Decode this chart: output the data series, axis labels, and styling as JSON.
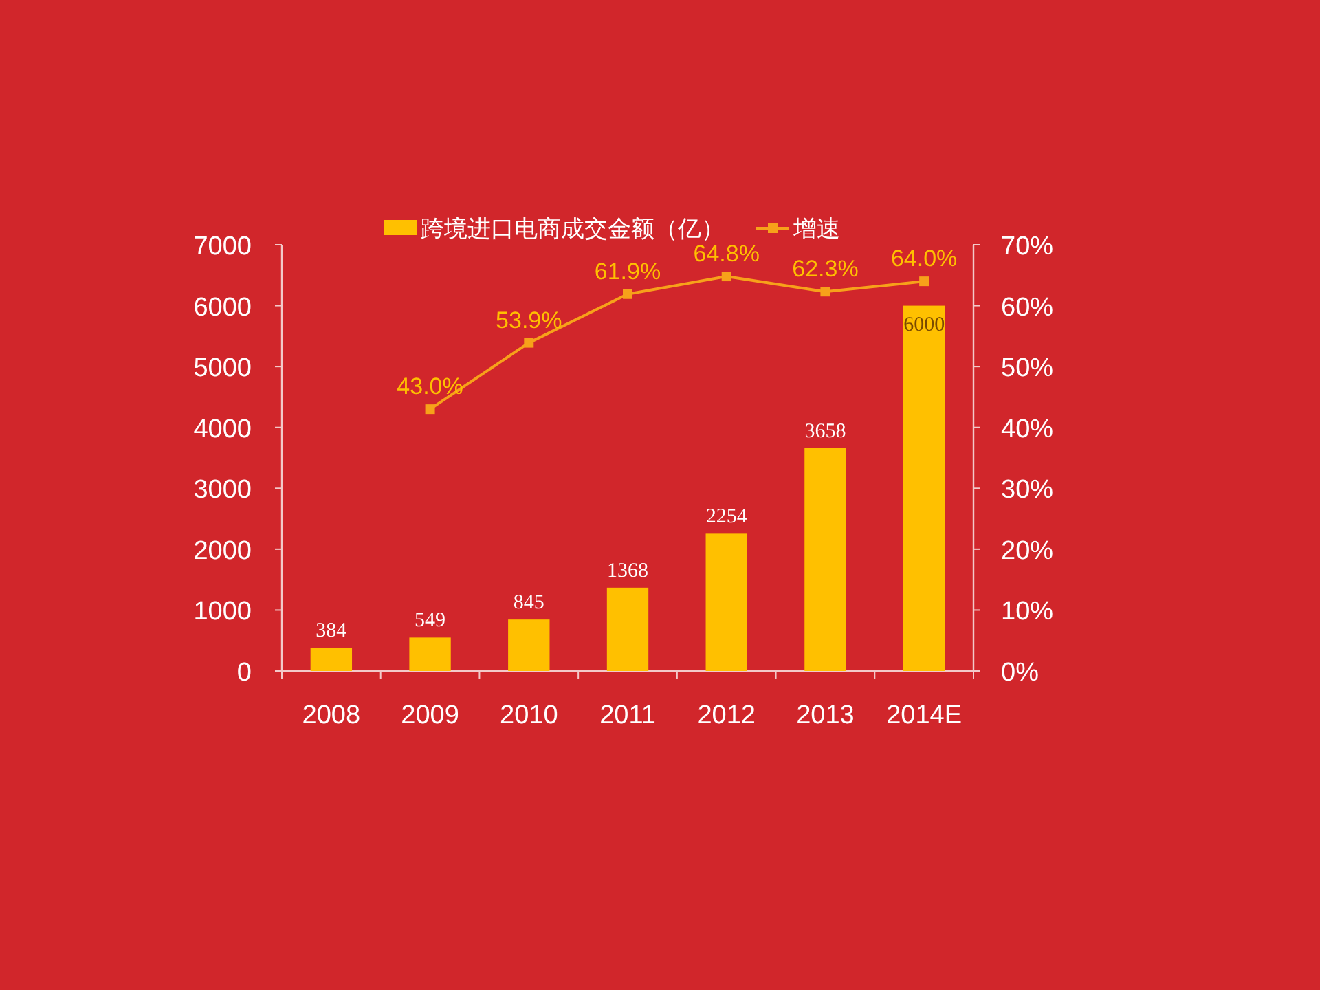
{
  "chart_data": {
    "type": "bar",
    "categories": [
      "2008",
      "2009",
      "2010",
      "2011",
      "2012",
      "2013",
      "2014E"
    ],
    "series": [
      {
        "name": "跨境进口电商成交金额（亿）",
        "color": "#ffc000",
        "values": [
          384,
          549,
          845,
          1368,
          2254,
          3658,
          6000
        ],
        "value_labels": [
          "384",
          "549",
          "845",
          "1368",
          "2254",
          "3658",
          "6000"
        ]
      },
      {
        "name": "增速",
        "type": "line",
        "axis": "y2",
        "color": "#f7a11a",
        "values": [
          null,
          43.0,
          53.9,
          61.9,
          64.8,
          62.3,
          64.0
        ],
        "value_labels": [
          null,
          "43.0%",
          "53.9%",
          "61.9%",
          "64.8%",
          "62.3%",
          "64.0%"
        ]
      }
    ],
    "marker": "square",
    "line_style": "solid",
    "legend": "top",
    "grid": false,
    "ylim": [
      0,
      7000
    ],
    "yticks": [
      0,
      1000,
      2000,
      3000,
      4000,
      5000,
      6000,
      7000
    ],
    "y2lim": [
      0,
      70
    ],
    "y2ticks": [
      {
        "value": 0,
        "label": "0%"
      },
      {
        "value": 10,
        "label": "10%"
      },
      {
        "value": 20,
        "label": "20%"
      },
      {
        "value": 30,
        "label": "30%"
      },
      {
        "value": 40,
        "label": "40%"
      },
      {
        "value": 50,
        "label": "50%"
      },
      {
        "value": 60,
        "label": "60%"
      },
      {
        "value": 70,
        "label": "70%"
      }
    ]
  }
}
